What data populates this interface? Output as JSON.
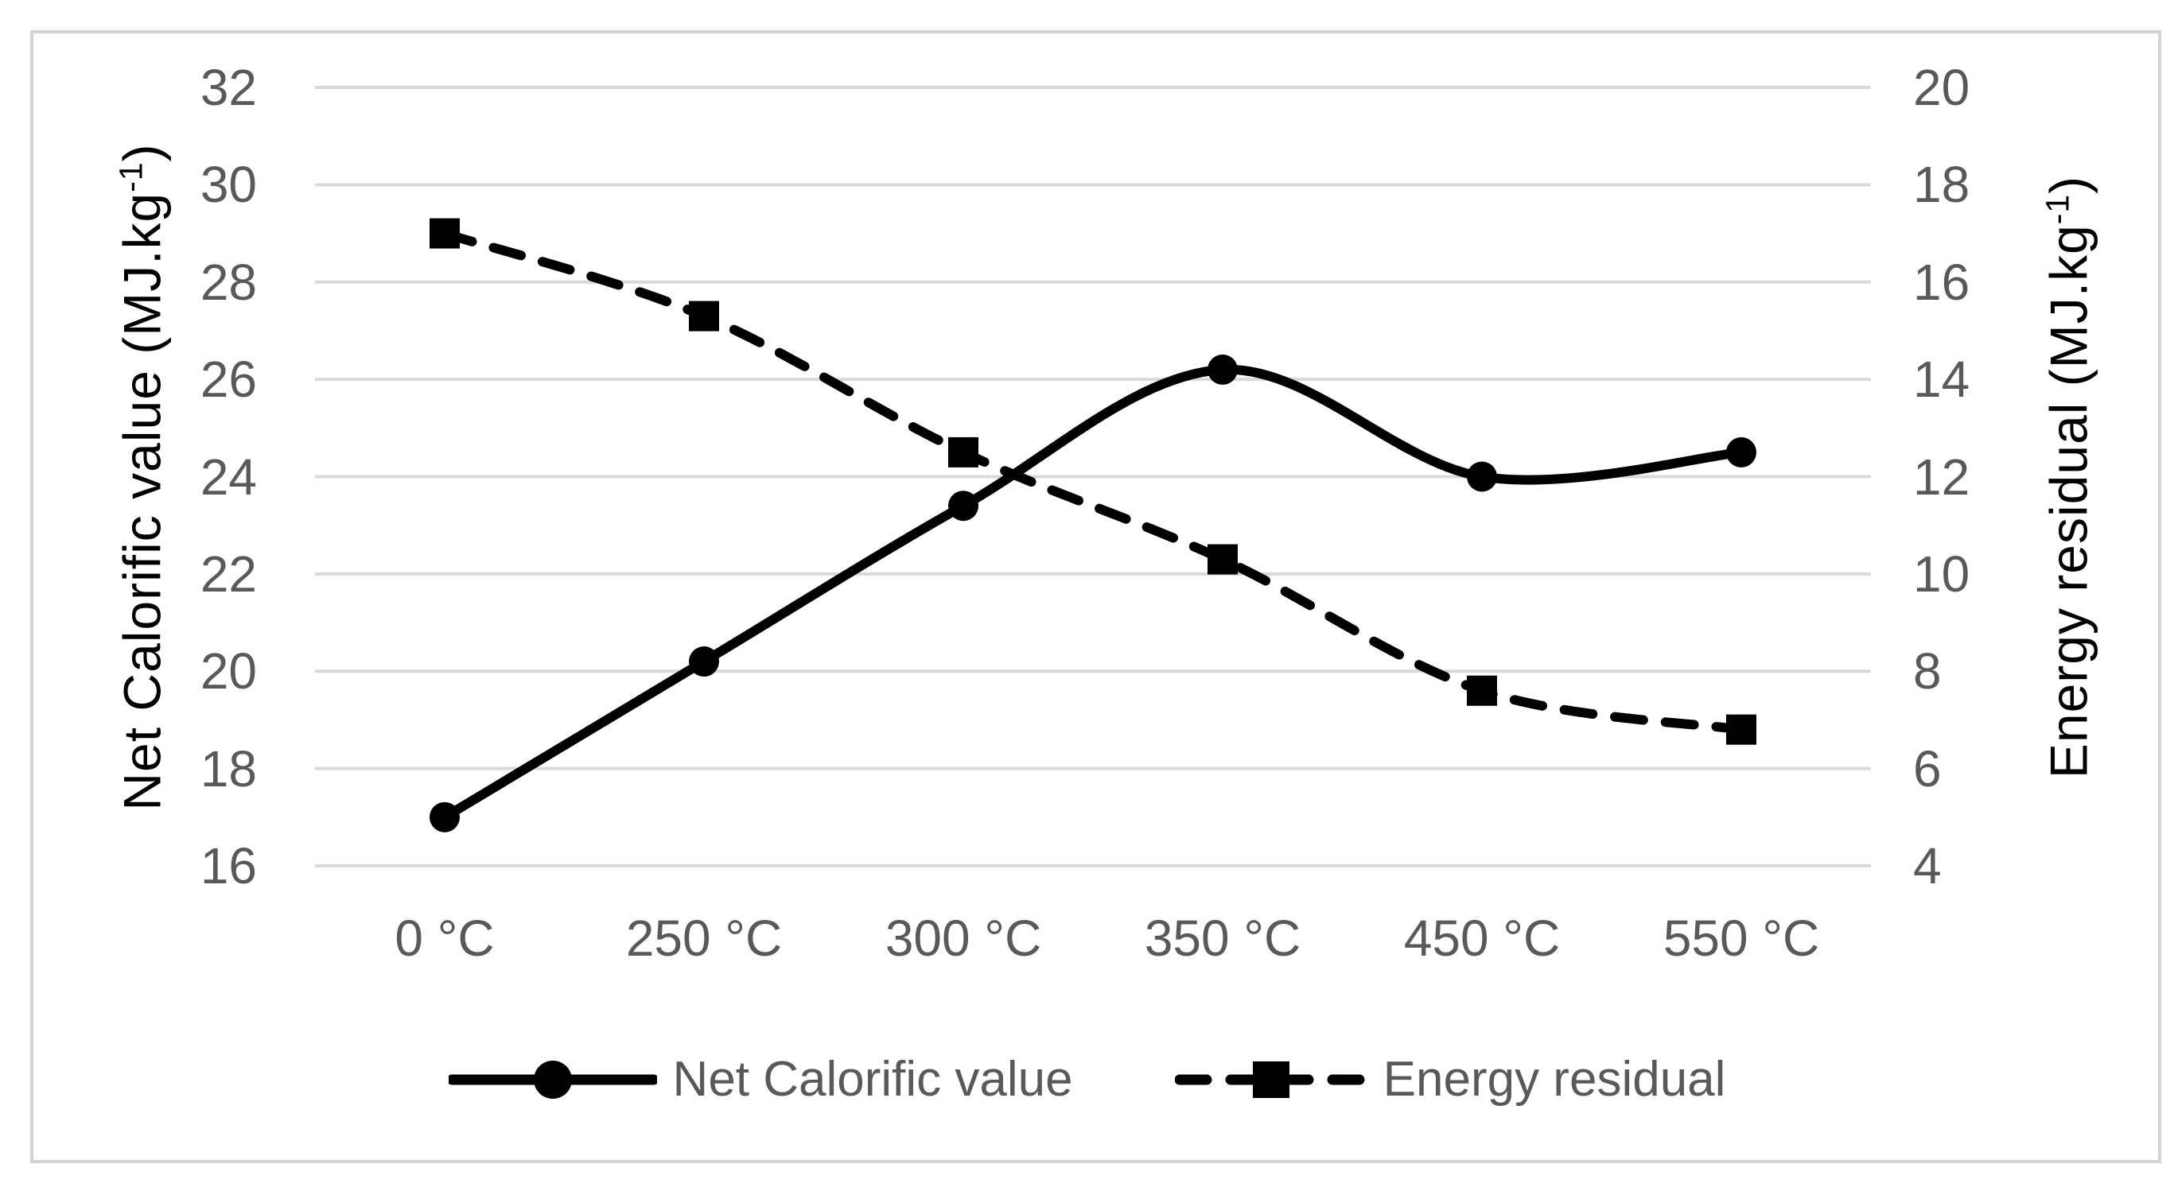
{
  "chart_data": {
    "type": "line",
    "title": "",
    "categories": [
      "0 °C",
      "250 °C",
      "300 °C",
      "350 °C",
      "450 °C",
      "550 °C"
    ],
    "series": [
      {
        "name": "Net Calorific value",
        "axis": "left",
        "marker": "circle",
        "line_style": "solid",
        "smooth": true,
        "values": [
          17.0,
          20.2,
          23.4,
          26.2,
          24.0,
          24.5
        ]
      },
      {
        "name": "Energy residual",
        "axis": "right",
        "marker": "square",
        "line_style": "dashed",
        "smooth": true,
        "values": [
          17.0,
          15.3,
          12.5,
          10.3,
          7.6,
          6.8
        ]
      }
    ],
    "axes": {
      "left": {
        "title_prefix": "Net Calorific value (MJ.kg",
        "title_sup": "-1",
        "title_suffix": ")",
        "min": 16,
        "max": 32,
        "ticks": [
          32,
          30,
          28,
          26,
          24,
          22,
          20,
          18,
          16
        ]
      },
      "right": {
        "title_prefix": "Energy residual (MJ.kg",
        "title_sup": "-1",
        "title_suffix": ")",
        "min": 4,
        "max": 20,
        "ticks": [
          20,
          18,
          16,
          14,
          12,
          10,
          8,
          6,
          4
        ]
      }
    },
    "grid": true,
    "legend_position": "bottom"
  },
  "colors": {
    "background": "#ffffff",
    "series": "#000000",
    "grid": "#d9d9d9",
    "border": "#d3d3d3",
    "text_muted": "#595959",
    "text_title": "#000000"
  }
}
